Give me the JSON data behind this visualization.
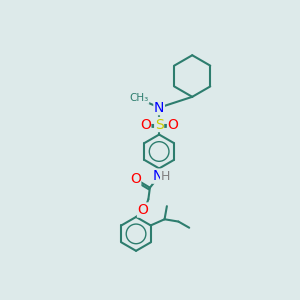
{
  "bg_color": "#ddeaea",
  "bond_color": "#2d7d6e",
  "atom_colors": {
    "N": "#0000ff",
    "O": "#ff0000",
    "S": "#cccc00",
    "H": "#808080",
    "C": "#2d7d6e"
  }
}
